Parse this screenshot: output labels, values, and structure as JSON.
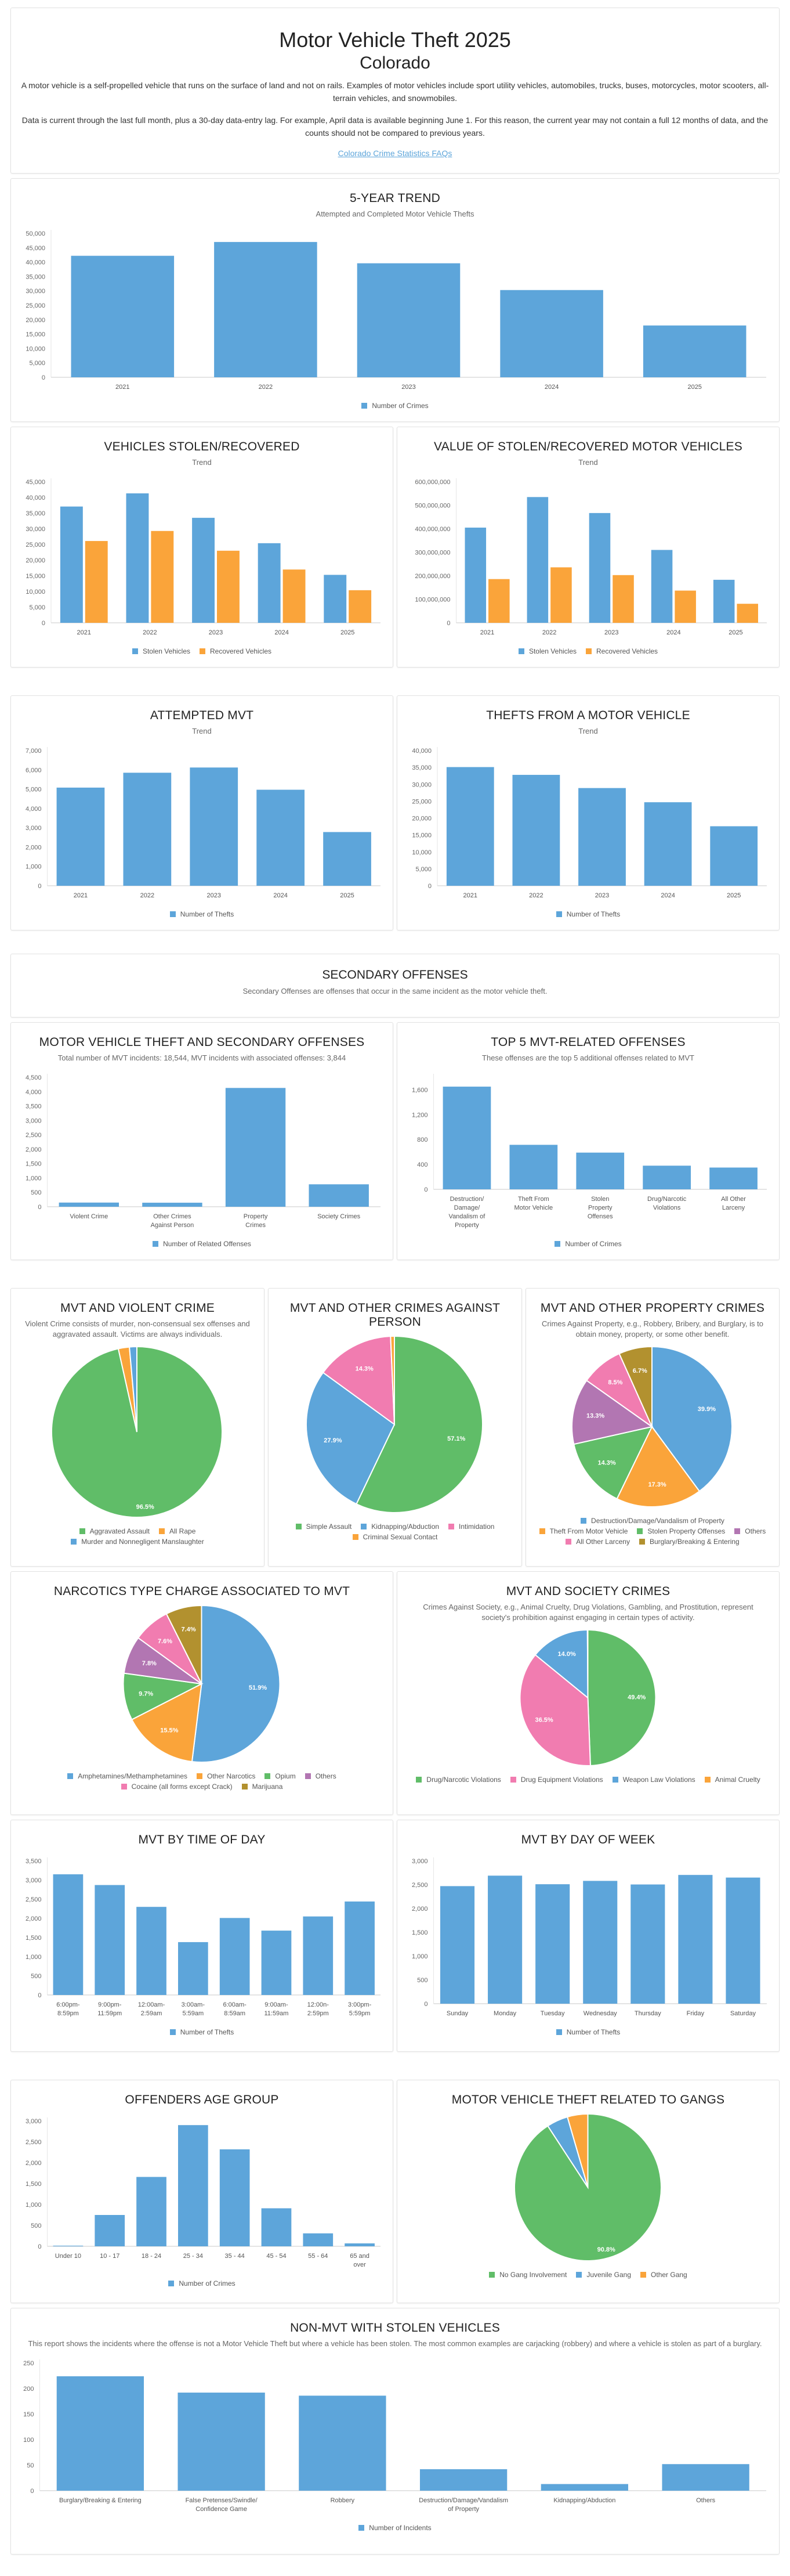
{
  "header": {
    "title": "Motor Vehicle Theft 2025",
    "subtitle": "Colorado",
    "description": "A motor vehicle is a self-propelled vehicle that runs on the surface of land and not on rails. Examples of motor vehicles include sport utility vehicles, automobiles, trucks, buses, motorcycles, motor scooters, all-terrain vehicles, and snowmobiles.",
    "note": "Data is current through the last full month, plus a 30-day data-entry lag. For example, April data is available beginning June 1. For this reason, the current year may not contain a full 12 months of data, and the counts should not be compared to previous years.",
    "faq_link": "Colorado Crime Statistics FAQs"
  },
  "colors": {
    "blue": "#5da5da",
    "orange": "#faa43a",
    "green": "#60bd68",
    "pink": "#f17cb0",
    "purple": "#b276b2",
    "olive": "#b2912f",
    "link": "#5da5da"
  },
  "secondary_section": {
    "title": "SECONDARY OFFENSES",
    "description": "Secondary Offenses are offenses that occur in the same incident as the motor vehicle theft."
  },
  "chart_data": [
    {
      "id": "five_year",
      "type": "bar",
      "title": "5-YEAR TREND",
      "subtitle": "Attempted and Completed Motor Vehicle Thefts",
      "categories": [
        "2021",
        "2022",
        "2023",
        "2024",
        "2025"
      ],
      "series": [
        {
          "name": "Number of Crimes",
          "color": "#5da5da",
          "values": [
            42200,
            47000,
            39600,
            30300,
            18000
          ]
        }
      ],
      "ylim": [
        0,
        50000
      ],
      "yticks": [
        0,
        5000,
        10000,
        15000,
        20000,
        25000,
        30000,
        35000,
        40000,
        45000,
        50000
      ],
      "legend": "bottom"
    },
    {
      "id": "stolen_recovered",
      "type": "bar",
      "title": "VEHICLES STOLEN/RECOVERED",
      "subtitle": "Trend",
      "categories": [
        "2021",
        "2022",
        "2023",
        "2024",
        "2025"
      ],
      "series": [
        {
          "name": "Stolen Vehicles",
          "color": "#5da5da",
          "values": [
            37100,
            41300,
            33500,
            25400,
            15300
          ]
        },
        {
          "name": "Recovered Vehicles",
          "color": "#faa43a",
          "values": [
            26100,
            29300,
            23000,
            17000,
            10400
          ]
        }
      ],
      "ylim": [
        0,
        45000
      ],
      "yticks": [
        0,
        5000,
        10000,
        15000,
        20000,
        25000,
        30000,
        35000,
        40000,
        45000
      ],
      "legend": "bottom"
    },
    {
      "id": "value_stolen_recovered",
      "type": "bar",
      "title": "VALUE OF STOLEN/RECOVERED MOTOR VEHICLES",
      "subtitle": "Trend",
      "categories": [
        "2021",
        "2022",
        "2023",
        "2024",
        "2025"
      ],
      "series": [
        {
          "name": "Stolen Vehicles",
          "color": "#5da5da",
          "values": [
            405000000,
            535000000,
            467000000,
            310000000,
            183000000
          ]
        },
        {
          "name": "Recovered Vehicles",
          "color": "#faa43a",
          "values": [
            186000000,
            236000000,
            203000000,
            137000000,
            81000000
          ]
        }
      ],
      "ylim": [
        0,
        600000000
      ],
      "yticks": [
        0,
        100000000,
        200000000,
        300000000,
        400000000,
        500000000,
        600000000
      ],
      "legend": "bottom"
    },
    {
      "id": "attempted",
      "type": "bar",
      "title": "ATTEMPTED MVT",
      "subtitle": "Trend",
      "categories": [
        "2021",
        "2022",
        "2023",
        "2024",
        "2025"
      ],
      "series": [
        {
          "name": "Number of Thefts",
          "color": "#5da5da",
          "values": [
            5080,
            5850,
            6120,
            4970,
            2780
          ]
        }
      ],
      "ylim": [
        0,
        7000
      ],
      "yticks": [
        0,
        1000,
        2000,
        3000,
        4000,
        5000,
        6000,
        7000
      ],
      "legend": "bottom"
    },
    {
      "id": "thefts_from",
      "type": "bar",
      "title": "THEFTS FROM A MOTOR VEHICLE",
      "subtitle": "Trend",
      "categories": [
        "2021",
        "2022",
        "2023",
        "2024",
        "2025"
      ],
      "series": [
        {
          "name": "Number of Thefts",
          "color": "#5da5da",
          "values": [
            35100,
            32800,
            28900,
            24700,
            17600
          ]
        }
      ],
      "ylim": [
        0,
        40000
      ],
      "yticks": [
        0,
        5000,
        10000,
        15000,
        20000,
        25000,
        30000,
        35000,
        40000
      ],
      "legend": "bottom"
    },
    {
      "id": "secondary",
      "type": "bar",
      "title": "MOTOR VEHICLE THEFT AND SECONDARY OFFENSES",
      "subtitle": "Total number of MVT incidents: 18,544, MVT incidents with associated offenses: 3,844",
      "categories": [
        "Violent Crime",
        "Other Crimes Against Person",
        "Property Crimes",
        "Society Crimes"
      ],
      "series": [
        {
          "name": "Number of Related Offenses",
          "color": "#5da5da",
          "values": [
            145,
            140,
            4130,
            780
          ]
        }
      ],
      "ylim": [
        0,
        4500
      ],
      "yticks": [
        0,
        500,
        1000,
        1500,
        2000,
        2500,
        3000,
        3500,
        4000,
        4500
      ],
      "legend": "bottom"
    },
    {
      "id": "top5",
      "type": "bar",
      "title": "TOP 5 MVT-RELATED OFFENSES",
      "subtitle": "These offenses are the top 5 additional offenses related to MVT",
      "categories": [
        "Destruction/ Damage/ Vandalism of Property",
        "Theft From Motor Vehicle",
        "Stolen Property Offenses",
        "Drug/Narcotic Violations",
        "All Other Larceny"
      ],
      "series": [
        {
          "name": "Number of Crimes",
          "color": "#5da5da",
          "values": [
            1650,
            715,
            590,
            380,
            350
          ]
        }
      ],
      "ylim": [
        0,
        1800
      ],
      "yticks": [
        0,
        400,
        800,
        1200,
        1600
      ],
      "legend": "bottom"
    },
    {
      "id": "violent",
      "type": "pie",
      "title": "MVT AND VIOLENT CRIME",
      "subtitle": "Violent Crime consists of murder, non-consensual sex offenses and aggravated assault. Victims are always individuals.",
      "slices": [
        {
          "label": "Aggravated Assault",
          "value": 96.5,
          "color": "#60bd68",
          "show_label": true
        },
        {
          "label": "All Rape",
          "value": 2.1,
          "color": "#faa43a",
          "show_label": false
        },
        {
          "label": "Murder and Nonnegligent Manslaughter",
          "value": 1.4,
          "color": "#5da5da",
          "show_label": false
        }
      ],
      "legend": "bottom"
    },
    {
      "id": "person",
      "type": "pie",
      "title": "MVT AND OTHER CRIMES AGAINST PERSON",
      "subtitle": "",
      "slices": [
        {
          "label": "Simple Assault",
          "value": 57.1,
          "color": "#60bd68",
          "show_label": true
        },
        {
          "label": "Kidnapping/Abduction",
          "value": 27.9,
          "color": "#5da5da",
          "show_label": true
        },
        {
          "label": "Intimidation",
          "value": 14.3,
          "color": "#f17cb0",
          "show_label": true
        },
        {
          "label": "Criminal Sexual Contact",
          "value": 0.7,
          "color": "#faa43a",
          "show_label": false
        }
      ],
      "legend": "bottom"
    },
    {
      "id": "property",
      "type": "pie",
      "title": "MVT AND OTHER PROPERTY CRIMES",
      "subtitle": "Crimes Against Property, e.g., Robbery, Bribery, and Burglary, is to obtain money, property, or some other benefit.",
      "slices": [
        {
          "label": "Destruction/Damage/Vandalism of Property",
          "value": 39.9,
          "color": "#5da5da",
          "show_label": true
        },
        {
          "label": "Theft From Motor Vehicle",
          "value": 17.3,
          "color": "#faa43a",
          "show_label": true
        },
        {
          "label": "Stolen Property Offenses",
          "value": 14.3,
          "color": "#60bd68",
          "show_label": true
        },
        {
          "label": "Others",
          "value": 13.3,
          "color": "#b276b2",
          "show_label": true
        },
        {
          "label": "All Other Larceny",
          "value": 8.5,
          "color": "#f17cb0",
          "show_label": true
        },
        {
          "label": "Burglary/Breaking & Entering",
          "value": 6.7,
          "color": "#b2912f",
          "show_label": true
        }
      ],
      "legend": "bottom"
    },
    {
      "id": "narcotics",
      "type": "pie",
      "title": "NARCOTICS TYPE CHARGE ASSOCIATED TO MVT",
      "subtitle": "",
      "slices": [
        {
          "label": "Amphetamines/Methamphetamines",
          "value": 51.9,
          "color": "#5da5da",
          "show_label": true
        },
        {
          "label": "Other Narcotics",
          "value": 15.5,
          "color": "#faa43a",
          "show_label": true
        },
        {
          "label": "Opium",
          "value": 9.7,
          "color": "#60bd68",
          "show_label": true
        },
        {
          "label": "Others",
          "value": 7.8,
          "color": "#b276b2",
          "show_label": true
        },
        {
          "label": "Cocaine (all forms except Crack)",
          "value": 7.6,
          "color": "#f17cb0",
          "show_label": true
        },
        {
          "label": "Marijuana",
          "value": 7.4,
          "color": "#b2912f",
          "show_label": true
        }
      ],
      "legend": "bottom"
    },
    {
      "id": "society",
      "type": "pie",
      "title": "MVT AND SOCIETY CRIMES",
      "subtitle": "Crimes Against Society, e.g., Animal Cruelty, Drug Violations, Gambling, and Prostitution, represent society's prohibition against engaging in certain types of activity.",
      "slices": [
        {
          "label": "Drug/Narcotic Violations",
          "value": 49.4,
          "color": "#60bd68",
          "show_label": true
        },
        {
          "label": "Drug Equipment Violations",
          "value": 36.5,
          "color": "#f17cb0",
          "show_label": true
        },
        {
          "label": "Weapon Law Violations",
          "value": 14.0,
          "color": "#5da5da",
          "show_label": true
        },
        {
          "label": "Animal Cruelty",
          "value": 0.1,
          "color": "#faa43a",
          "show_label": false
        }
      ],
      "legend": "bottom"
    },
    {
      "id": "time_of_day",
      "type": "bar",
      "title": "MVT BY TIME OF DAY",
      "subtitle": "",
      "categories": [
        "6:00pm- 8:59pm",
        "9:00pm- 11:59pm",
        "12:00am- 2:59am",
        "3:00am- 5:59am",
        "6:00am- 8:59am",
        "9:00am- 11:59am",
        "12:00n- 2:59pm",
        "3:00pm- 5:59pm"
      ],
      "series": [
        {
          "name": "Number of Thefts",
          "color": "#5da5da",
          "values": [
            3150,
            2870,
            2300,
            1380,
            2010,
            1680,
            2050,
            2440
          ]
        }
      ],
      "ylim": [
        0,
        3500
      ],
      "yticks": [
        0,
        500,
        1000,
        1500,
        2000,
        2500,
        3000,
        3500
      ],
      "legend": "bottom"
    },
    {
      "id": "day_of_week",
      "type": "bar",
      "title": "MVT BY DAY OF WEEK",
      "subtitle": "",
      "categories": [
        "Sunday",
        "Monday",
        "Tuesday",
        "Wednesday",
        "Thursday",
        "Friday",
        "Saturday"
      ],
      "series": [
        {
          "name": "Number of Thefts",
          "color": "#5da5da",
          "values": [
            2470,
            2690,
            2510,
            2580,
            2505,
            2705,
            2650
          ]
        }
      ],
      "ylim": [
        0,
        3000
      ],
      "yticks": [
        0,
        500,
        1000,
        1500,
        2000,
        2500,
        3000
      ],
      "legend": "bottom"
    },
    {
      "id": "age",
      "type": "bar",
      "title": "OFFENDERS AGE GROUP",
      "subtitle": "",
      "categories": [
        "Under 10",
        "10 - 17",
        "18 - 24",
        "25 - 34",
        "35 - 44",
        "45 - 54",
        "55 - 64",
        "65 and over"
      ],
      "series": [
        {
          "name": "Number of Crimes",
          "color": "#5da5da",
          "values": [
            15,
            750,
            1660,
            2900,
            2320,
            910,
            310,
            70
          ]
        }
      ],
      "ylim": [
        0,
        3000
      ],
      "yticks": [
        0,
        500,
        1000,
        1500,
        2000,
        2500,
        3000
      ],
      "legend": "bottom"
    },
    {
      "id": "gangs",
      "type": "pie",
      "title": "MOTOR VEHICLE THEFT RELATED TO GANGS",
      "subtitle": "",
      "slices": [
        {
          "label": "No Gang Involvement",
          "value": 90.8,
          "color": "#60bd68",
          "show_label": true
        },
        {
          "label": "Juvenile Gang",
          "value": 4.7,
          "color": "#5da5da",
          "show_label": false
        },
        {
          "label": "Other Gang",
          "value": 4.5,
          "color": "#faa43a",
          "show_label": false
        }
      ],
      "legend": "bottom"
    },
    {
      "id": "non_mvt",
      "type": "bar",
      "title": "NON-MVT WITH STOLEN VEHICLES",
      "subtitle": "This report shows the incidents where the offense is not a Motor Vehicle Theft but where a vehicle has been stolen. The most common examples are carjacking (robbery) and where a vehicle is stolen as part of a burglary.",
      "categories": [
        "Burglary/Breaking & Entering",
        "False Pretenses/Swindle/ Confidence Game",
        "Robbery",
        "Destruction/Damage/Vandalism of Property",
        "Kidnapping/Abduction",
        "Others"
      ],
      "series": [
        {
          "name": "Number of Incidents",
          "color": "#5da5da",
          "values": [
            224,
            192,
            186,
            42,
            13,
            52
          ]
        }
      ],
      "ylim": [
        0,
        250
      ],
      "yticks": [
        0,
        50,
        100,
        150,
        200,
        250
      ],
      "legend": "bottom"
    }
  ]
}
